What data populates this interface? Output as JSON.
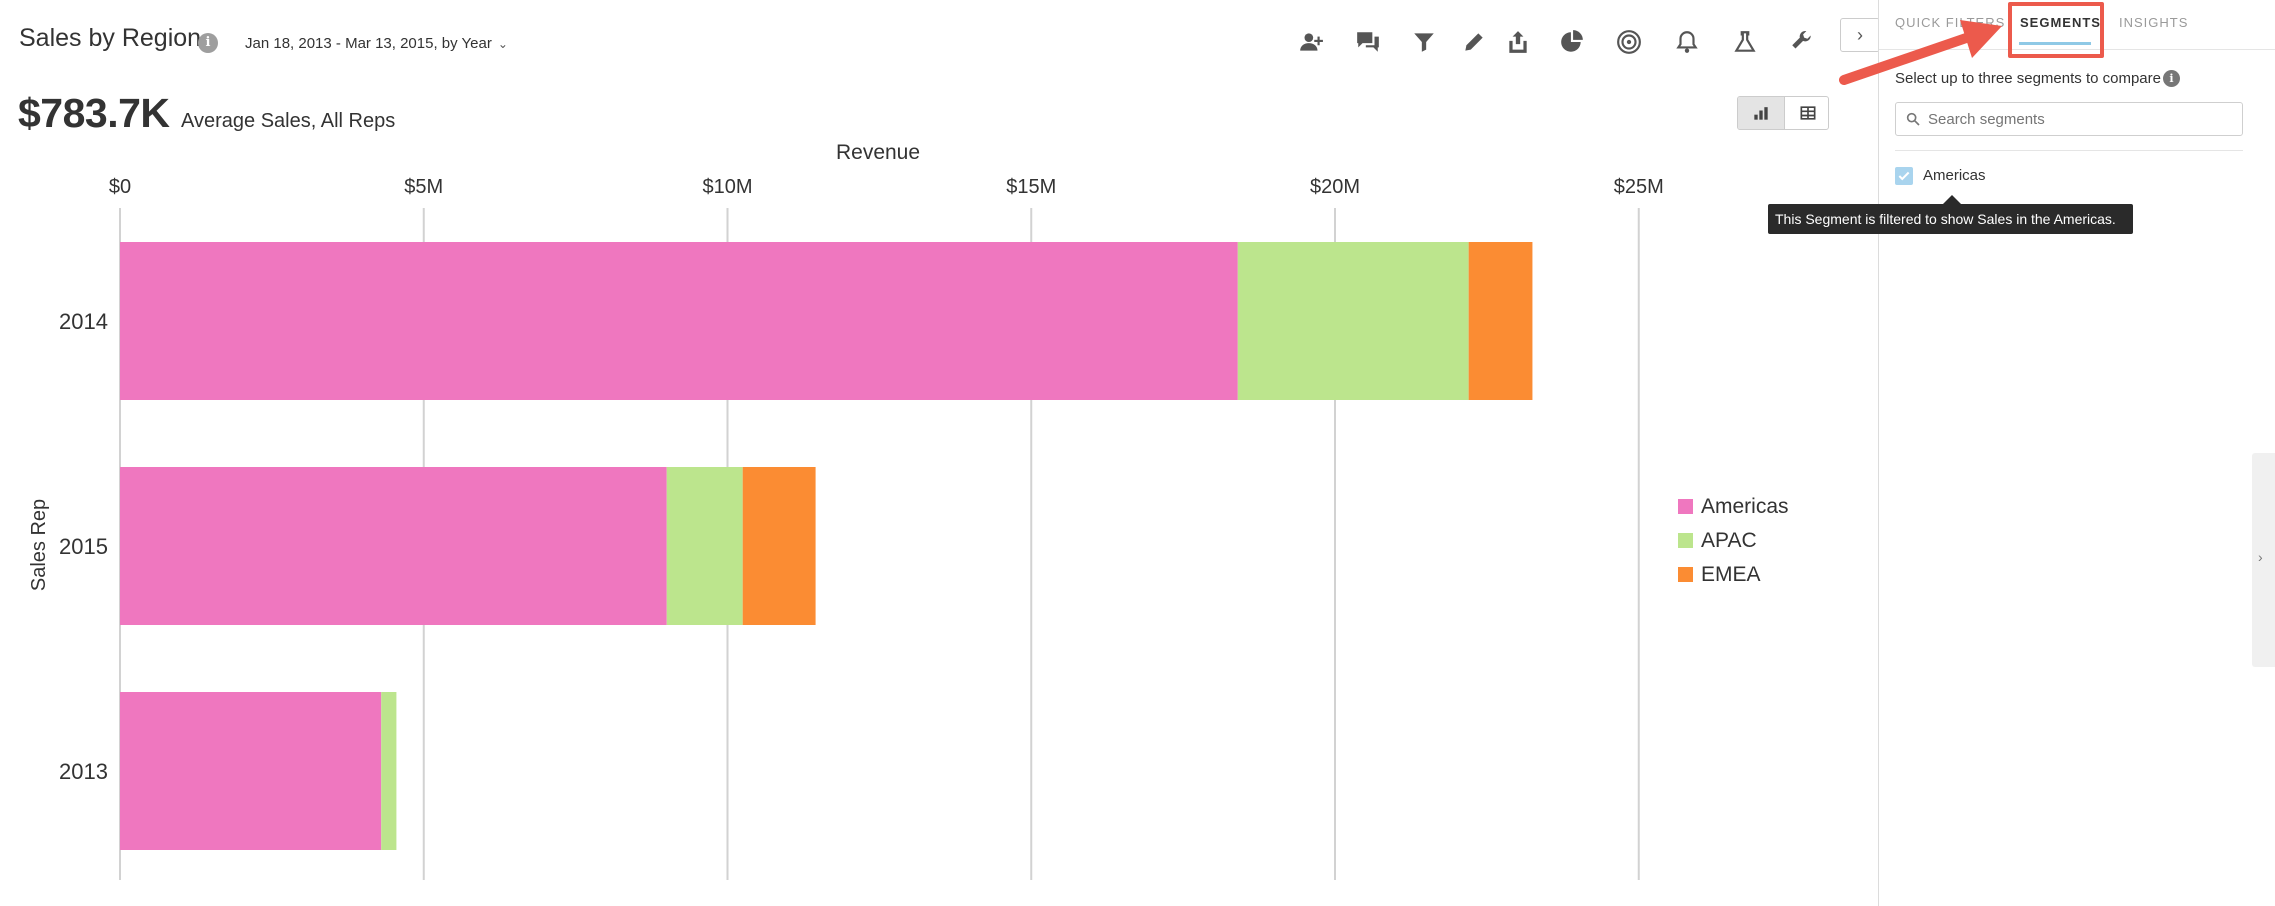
{
  "header": {
    "title": "Sales by Region",
    "date_range": "Jan 18, 2013 - Mar 13, 2015, by Year",
    "date_range_chevron": "⌄"
  },
  "toolbar": {
    "icons": [
      "add-user-icon",
      "comments-icon",
      "filter-icon",
      "pencil-icon",
      "share-icon",
      "pie-chart-icon",
      "target-icon",
      "bell-icon",
      "flask-icon",
      "wrench-icon"
    ],
    "collapse_glyph": "›"
  },
  "metric": {
    "value": "$783.7K",
    "label": "Average Sales, All Reps"
  },
  "view_toggle": {
    "active": "chart"
  },
  "chart_data": {
    "type": "bar",
    "orientation": "horizontal",
    "stacked": true,
    "xlabel": "Revenue",
    "ylabel": "Sales Rep",
    "xlim": [
      0,
      25000000
    ],
    "x_ticks": [
      0,
      5000000,
      10000000,
      15000000,
      20000000,
      25000000
    ],
    "x_tick_labels": [
      "$0",
      "$5M",
      "$10M",
      "$15M",
      "$20M",
      "$25M"
    ],
    "grid": true,
    "legend": "right",
    "categories": [
      "2014",
      "2015",
      "2013"
    ],
    "series": [
      {
        "name": "Americas",
        "color": "#ef77bf",
        "values": [
          18400000,
          9000000,
          4300000
        ]
      },
      {
        "name": "APAC",
        "color": "#bce58d",
        "values": [
          3800000,
          1250000,
          250000
        ]
      },
      {
        "name": "EMEA",
        "color": "#fb8c33",
        "values": [
          1050000,
          1200000,
          0
        ]
      }
    ]
  },
  "panel": {
    "tabs": [
      {
        "label": "QUICK FILTERS",
        "active": false
      },
      {
        "label": "SEGMENTS",
        "active": true
      },
      {
        "label": "INSIGHTS",
        "active": false
      }
    ],
    "hint": "Select up to three segments to compare",
    "search_placeholder": "Search segments",
    "segments": [
      {
        "label": "Americas",
        "checked": true
      }
    ],
    "tooltip": "This Segment is filtered to show Sales in the Americas.",
    "handle_glyph": "›"
  },
  "colors": {
    "accent_underline": "#8fc9e6",
    "annotation": "#ec5a4c"
  }
}
